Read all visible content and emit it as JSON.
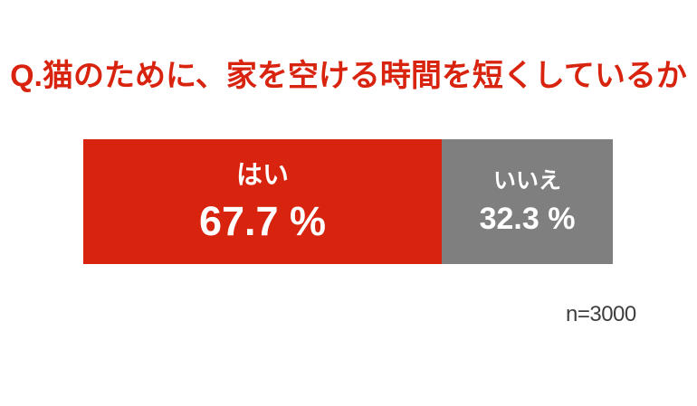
{
  "title": "Q.猫のために、家を空ける時間を短くしているか",
  "footnote": "n=3000",
  "colors": {
    "accent_red": "#d8230f",
    "gray": "#7f7f7f",
    "background": "#ffffff",
    "bar_text": "#ffffff",
    "footnote_text": "#3f3f3f"
  },
  "chart_data": {
    "type": "bar",
    "orientation": "horizontal-stacked",
    "title": "Q.猫のために、家を空ける時間を短くしているか",
    "categories": [
      "はい",
      "いいえ"
    ],
    "values": [
      67.7,
      32.3
    ],
    "unit": "%",
    "xlim": [
      0,
      100
    ],
    "grid": false,
    "legend": "none",
    "sample_size_label": "n=3000",
    "segments": [
      {
        "label": "はい",
        "value": 67.7,
        "value_label": "67.7 %",
        "color": "#d8230f"
      },
      {
        "label": "いいえ",
        "value": 32.3,
        "value_label": "32.3 %",
        "color": "#7f7f7f"
      }
    ]
  }
}
